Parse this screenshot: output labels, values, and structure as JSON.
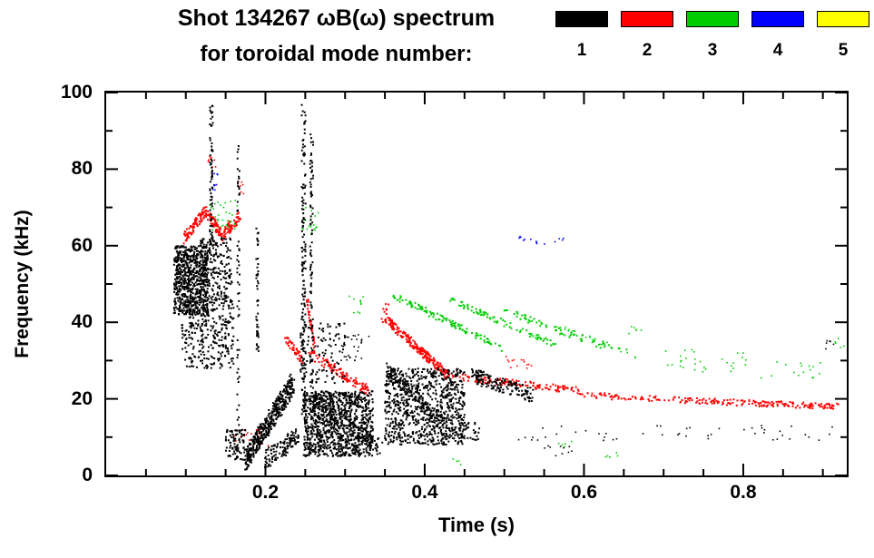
{
  "chart_data": {
    "type": "scatter",
    "title": "Shot 134267 ωB(ω) spectrum",
    "subtitle": "for toroidal mode number:",
    "xlabel": "Time (s)",
    "ylabel": "Frequency (kHz)",
    "xlim": [
      0.0,
      0.93
    ],
    "ylim": [
      0,
      100
    ],
    "x_major_ticks": [
      0.2,
      0.4,
      0.6,
      0.8
    ],
    "x_tick_labels": [
      "0.2",
      "0.4",
      "0.6",
      "0.8"
    ],
    "x_minor_step": 0.05,
    "y_major_ticks": [
      0,
      20,
      40,
      60,
      80,
      100
    ],
    "y_tick_labels": [
      "0",
      "20",
      "40",
      "60",
      "80",
      "100"
    ],
    "y_minor_step": 10,
    "grid": false,
    "legend_position": "top-right",
    "series": [
      {
        "name": "toroidal mode n=1",
        "mode": "1",
        "color": "#000000",
        "features": [
          {
            "kind": "box",
            "t": [
              0.085,
              0.128
            ],
            "f": [
              42,
              60
            ],
            "n": 700,
            "s": 2
          },
          {
            "kind": "box",
            "t": [
              0.095,
              0.16
            ],
            "f": [
              28,
              46
            ],
            "n": 300,
            "s": 2
          },
          {
            "kind": "line",
            "t": [
              0.132,
              0.132
            ],
            "f": [
              60,
              97
            ],
            "n": 70,
            "jt": 0.004,
            "jf": 0,
            "s": 2
          },
          {
            "kind": "box",
            "t": [
              0.118,
              0.158
            ],
            "f": [
              45,
              62
            ],
            "n": 220,
            "s": 2
          },
          {
            "kind": "line",
            "t": [
              0.166,
              0.166
            ],
            "f": [
              6,
              88
            ],
            "n": 60,
            "jt": 0.003,
            "jf": 0,
            "s": 2
          },
          {
            "kind": "box",
            "t": [
              0.15,
              0.175
            ],
            "f": [
              4,
              12
            ],
            "n": 80,
            "s": 2
          },
          {
            "kind": "line",
            "t": [
              0.19,
              0.19
            ],
            "f": [
              30,
              65
            ],
            "n": 50,
            "jt": 0.003,
            "jf": 0,
            "s": 2
          },
          {
            "kind": "line",
            "t": [
              0.175,
              0.235
            ],
            "f": [
              4,
              24
            ],
            "n": 430,
            "jt": 0.004,
            "jf": 3,
            "s": 2
          },
          {
            "kind": "line",
            "t": [
              0.2,
              0.24
            ],
            "f": [
              4,
              10
            ],
            "n": 120,
            "jt": 0.004,
            "jf": 2.5,
            "s": 2
          },
          {
            "kind": "line",
            "t": [
              0.248,
              0.248
            ],
            "f": [
              12,
              97
            ],
            "n": 150,
            "jt": 0.005,
            "jf": 0,
            "s": 2
          },
          {
            "kind": "line",
            "t": [
              0.258,
              0.258
            ],
            "f": [
              20,
              90
            ],
            "n": 90,
            "jt": 0.004,
            "jf": 0,
            "s": 2
          },
          {
            "kind": "box",
            "t": [
              0.243,
              0.3
            ],
            "f": [
              24,
              40
            ],
            "n": 110,
            "s": 2
          },
          {
            "kind": "box",
            "t": [
              0.248,
              0.335
            ],
            "f": [
              5,
              22
            ],
            "n": 1000,
            "s": 2
          },
          {
            "kind": "line",
            "t": [
              0.26,
              0.345
            ],
            "f": [
              20,
              7
            ],
            "n": 160,
            "jt": 0.004,
            "jf": 2,
            "s": 2
          },
          {
            "kind": "box",
            "t": [
              0.35,
              0.45
            ],
            "f": [
              8,
              28
            ],
            "n": 800,
            "s": 2
          },
          {
            "kind": "line",
            "t": [
              0.352,
              0.43
            ],
            "f": [
              28,
              12
            ],
            "n": 150,
            "jt": 0.004,
            "jf": 2,
            "s": 2
          },
          {
            "kind": "line",
            "t": [
              0.46,
              0.535
            ],
            "f": [
              26,
              21
            ],
            "n": 150,
            "jt": 0.004,
            "jf": 2,
            "s": 2
          },
          {
            "kind": "box",
            "t": [
              0.43,
              0.47
            ],
            "f": [
              9,
              14
            ],
            "n": 40,
            "s": 2
          },
          {
            "kind": "box",
            "t": [
              0.295,
              0.33
            ],
            "f": [
              30,
              38
            ],
            "n": 30,
            "s": 1.6
          },
          {
            "kind": "box",
            "t": [
              0.5,
              0.93
            ],
            "f": [
              9,
              13
            ],
            "n": 48,
            "s": 1.6
          },
          {
            "kind": "box",
            "t": [
              0.55,
              0.6
            ],
            "f": [
              5,
              8
            ],
            "n": 10,
            "s": 1.6
          },
          {
            "kind": "box",
            "t": [
              0.9,
              0.915
            ],
            "f": [
              33,
              36
            ],
            "n": 6,
            "s": 1.6
          }
        ]
      },
      {
        "name": "toroidal mode n=2",
        "mode": "2",
        "color": "#ff0000",
        "features": [
          {
            "kind": "line",
            "t": [
              0.098,
              0.125
            ],
            "f": [
              62,
              69
            ],
            "n": 80,
            "jt": 0.002,
            "jf": 1.5,
            "s": 2
          },
          {
            "kind": "line",
            "t": [
              0.125,
              0.148
            ],
            "f": [
              69,
              62
            ],
            "n": 70,
            "jt": 0.002,
            "jf": 1.5,
            "s": 2
          },
          {
            "kind": "line",
            "t": [
              0.148,
              0.168
            ],
            "f": [
              63,
              68
            ],
            "n": 50,
            "jt": 0.002,
            "jf": 1.5,
            "s": 2
          },
          {
            "kind": "box",
            "t": [
              0.128,
              0.138
            ],
            "f": [
              80,
              84
            ],
            "n": 8,
            "s": 1.6
          },
          {
            "kind": "box",
            "t": [
              0.165,
              0.175
            ],
            "f": [
              73,
              77
            ],
            "n": 6,
            "s": 1.6
          },
          {
            "kind": "box",
            "t": [
              0.16,
              0.205
            ],
            "f": [
              7,
              12
            ],
            "n": 22,
            "s": 1.6
          },
          {
            "kind": "line",
            "t": [
              0.225,
              0.247
            ],
            "f": [
              36,
              30
            ],
            "n": 40,
            "jt": 0.002,
            "jf": 1.2,
            "s": 2
          },
          {
            "kind": "line",
            "t": [
              0.252,
              0.262
            ],
            "f": [
              46,
              33
            ],
            "n": 40,
            "jt": 0.002,
            "jf": 1,
            "s": 2
          },
          {
            "kind": "line",
            "t": [
              0.255,
              0.33
            ],
            "f": [
              32,
              22
            ],
            "n": 110,
            "jt": 0.002,
            "jf": 1.3,
            "s": 2
          },
          {
            "kind": "box",
            "t": [
              0.345,
              0.355
            ],
            "f": [
              40,
              45
            ],
            "n": 12,
            "s": 2
          },
          {
            "kind": "line",
            "t": [
              0.35,
              0.43
            ],
            "f": [
              41,
              26
            ],
            "n": 220,
            "jt": 0.002,
            "jf": 1.2,
            "s": 2
          },
          {
            "kind": "line",
            "t": [
              0.43,
              0.6
            ],
            "f": [
              26,
              22
            ],
            "n": 130,
            "jt": 0.002,
            "jf": 0.9,
            "s": 2
          },
          {
            "kind": "line",
            "t": [
              0.6,
              0.74
            ],
            "f": [
              21,
              19.5
            ],
            "n": 70,
            "jt": 0.002,
            "jf": 0.8,
            "s": 2
          },
          {
            "kind": "line",
            "t": [
              0.74,
              0.92
            ],
            "f": [
              19.5,
              18
            ],
            "n": 150,
            "jt": 0.002,
            "jf": 0.8,
            "s": 2
          },
          {
            "kind": "box",
            "t": [
              0.5,
              0.535
            ],
            "f": [
              28,
              31
            ],
            "n": 14,
            "s": 1.6
          }
        ]
      },
      {
        "name": "toroidal mode n=3",
        "mode": "3",
        "color": "#00cc00",
        "features": [
          {
            "kind": "box",
            "t": [
              0.128,
              0.165
            ],
            "f": [
              64,
              72
            ],
            "n": 35,
            "s": 1.6
          },
          {
            "kind": "box",
            "t": [
              0.245,
              0.268
            ],
            "f": [
              63,
              70
            ],
            "n": 18,
            "s": 1.6
          },
          {
            "kind": "box",
            "t": [
              0.3,
              0.325
            ],
            "f": [
              42,
              47
            ],
            "n": 10,
            "s": 1.6
          },
          {
            "kind": "line",
            "t": [
              0.36,
              0.5
            ],
            "f": [
              47,
              33
            ],
            "n": 110,
            "jt": 0.002,
            "jf": 0.9,
            "s": 2
          },
          {
            "kind": "line",
            "t": [
              0.43,
              0.565
            ],
            "f": [
              46,
              34
            ],
            "n": 85,
            "jt": 0.002,
            "jf": 0.9,
            "s": 2
          },
          {
            "kind": "line",
            "t": [
              0.5,
              0.635
            ],
            "f": [
              43,
              33
            ],
            "n": 60,
            "jt": 0.002,
            "jf": 0.9,
            "s": 2
          },
          {
            "kind": "line",
            "t": [
              0.575,
              0.67
            ],
            "f": [
              38,
              31
            ],
            "n": 35,
            "jt": 0.002,
            "jf": 0.8,
            "s": 1.6
          },
          {
            "kind": "box",
            "t": [
              0.655,
              0.672
            ],
            "f": [
              36,
              39
            ],
            "n": 6,
            "s": 1.6
          },
          {
            "kind": "box",
            "t": [
              0.7,
              0.805
            ],
            "f": [
              27,
              33
            ],
            "n": 30,
            "s": 1.6
          },
          {
            "kind": "box",
            "t": [
              0.82,
              0.9
            ],
            "f": [
              25,
              30
            ],
            "n": 16,
            "s": 1.6
          },
          {
            "kind": "box",
            "t": [
              0.915,
              0.93
            ],
            "f": [
              33,
              36
            ],
            "n": 5,
            "s": 1.6
          },
          {
            "kind": "box",
            "t": [
              0.565,
              0.585
            ],
            "f": [
              7,
              9
            ],
            "n": 5,
            "s": 1.6
          },
          {
            "kind": "box",
            "t": [
              0.625,
              0.645
            ],
            "f": [
              4,
              6
            ],
            "n": 5,
            "s": 1.6
          },
          {
            "kind": "box",
            "t": [
              0.435,
              0.45
            ],
            "f": [
              2,
              5
            ],
            "n": 4,
            "s": 1.6
          }
        ]
      },
      {
        "name": "toroidal mode n=4",
        "mode": "4",
        "color": "#0000ff",
        "features": [
          {
            "kind": "box",
            "t": [
              0.131,
              0.141
            ],
            "f": [
              74,
              79
            ],
            "n": 10,
            "s": 1.6
          },
          {
            "kind": "line",
            "t": [
              0.515,
              0.56
            ],
            "f": [
              62,
              60
            ],
            "n": 10,
            "jt": 0.002,
            "jf": 0.6,
            "s": 1.6
          },
          {
            "kind": "box",
            "t": [
              0.56,
              0.575
            ],
            "f": [
              61,
              63
            ],
            "n": 4,
            "s": 1.6
          }
        ]
      },
      {
        "name": "toroidal mode n=5",
        "mode": "5",
        "color": "#ffff00",
        "features": []
      }
    ]
  }
}
